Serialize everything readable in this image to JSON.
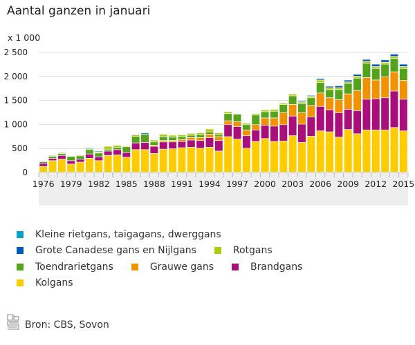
{
  "title": "Aantal ganzen in januari",
  "unit_label": "x 1 000",
  "source": "Bron: CBS, Sovon",
  "logo_icon": "cbs-logo-icon",
  "chart_data": {
    "type": "bar",
    "stacked": true,
    "title": "Aantal ganzen in januari",
    "ylabel": "x 1 000",
    "xlabel": "",
    "ylim": [
      0,
      2500
    ],
    "yticks": [
      0,
      500,
      1000,
      1500,
      2000,
      2500
    ],
    "ytick_labels": [
      "0",
      "500",
      "1 000",
      "1 500",
      "2 000",
      "2 500"
    ],
    "xtick_labels": [
      "1976",
      "1979",
      "1982",
      "1985",
      "1988",
      "1991",
      "1994",
      "1997",
      "2000",
      "2003",
      "2006",
      "2009",
      "2012",
      "2015"
    ],
    "grid": true,
    "legend_position": "bottom",
    "categories": [
      "1976",
      "1977",
      "1978",
      "1979",
      "1980",
      "1981",
      "1982",
      "1983",
      "1984",
      "1985",
      "1986",
      "1987",
      "1988",
      "1989",
      "1990",
      "1991",
      "1992",
      "1993",
      "1994",
      "1995",
      "1996",
      "1997",
      "1998",
      "1999",
      "2000",
      "2001",
      "2002",
      "2003",
      "2004",
      "2005",
      "2006",
      "2007",
      "2008",
      "2009",
      "2010",
      "2011",
      "2012",
      "2013",
      "2014",
      "2015"
    ],
    "series": [
      {
        "name": "Kolgans",
        "color": "#ffcc00",
        "values": [
          120,
          240,
          270,
          170,
          210,
          290,
          240,
          350,
          360,
          310,
          470,
          470,
          390,
          480,
          490,
          510,
          520,
          500,
          520,
          440,
          740,
          690,
          500,
          640,
          700,
          640,
          650,
          760,
          620,
          750,
          860,
          840,
          730,
          890,
          800,
          880,
          880,
          880,
          930,
          860
        ]
      },
      {
        "name": "Brandgans",
        "color": "#aa0e7a",
        "values": [
          70,
          50,
          80,
          70,
          60,
          90,
          80,
          90,
          110,
          100,
          140,
          150,
          150,
          150,
          140,
          130,
          150,
          160,
          200,
          220,
          250,
          260,
          260,
          240,
          280,
          320,
          340,
          410,
          380,
          400,
          510,
          460,
          510,
          420,
          480,
          640,
          650,
          670,
          760,
          660
        ]
      },
      {
        "name": "Grauwe gans",
        "color": "#f39200",
        "values": [
          0,
          0,
          0,
          0,
          0,
          0,
          0,
          0,
          0,
          0,
          0,
          0,
          20,
          30,
          30,
          40,
          50,
          60,
          70,
          80,
          80,
          100,
          120,
          110,
          150,
          170,
          250,
          240,
          240,
          240,
          280,
          250,
          270,
          320,
          420,
          450,
          390,
          440,
          400,
          390
        ]
      },
      {
        "name": "Toendrarietgans",
        "color": "#53a31d",
        "values": [
          30,
          40,
          40,
          90,
          70,
          90,
          80,
          40,
          50,
          120,
          140,
          170,
          70,
          80,
          70,
          60,
          50,
          60,
          50,
          40,
          150,
          160,
          110,
          200,
          130,
          140,
          170,
          180,
          190,
          160,
          220,
          170,
          210,
          220,
          260,
          300,
          240,
          260,
          280,
          250
        ]
      },
      {
        "name": "Rotgans",
        "color": "#afca0b",
        "values": [
          10,
          20,
          20,
          10,
          20,
          20,
          20,
          60,
          40,
          20,
          30,
          0,
          40,
          50,
          40,
          40,
          40,
          40,
          60,
          40,
          40,
          10,
          30,
          30,
          40,
          40,
          30,
          40,
          30,
          30,
          50,
          40,
          40,
          30,
          40,
          40,
          40,
          40,
          40,
          40
        ]
      },
      {
        "name": "Grote Canadese gans en Nijlgans",
        "color": "#0058b8",
        "values": [
          0,
          0,
          0,
          0,
          0,
          0,
          0,
          0,
          0,
          0,
          0,
          0,
          0,
          0,
          0,
          0,
          0,
          0,
          0,
          0,
          0,
          0,
          0,
          0,
          0,
          0,
          10,
          10,
          20,
          20,
          30,
          30,
          40,
          40,
          40,
          40,
          50,
          50,
          50,
          50
        ]
      },
      {
        "name": "Kleine rietgans, taigagans, dwerggans",
        "color": "#00a1cd",
        "values": [
          0,
          0,
          0,
          0,
          0,
          20,
          20,
          0,
          0,
          0,
          0,
          30,
          0,
          0,
          0,
          0,
          0,
          0,
          0,
          0,
          0,
          0,
          0,
          0,
          0,
          0,
          0,
          0,
          0,
          0,
          0,
          0,
          0,
          0,
          0,
          0,
          0,
          0,
          0,
          0
        ]
      }
    ]
  },
  "legend": {
    "rows": [
      [
        {
          "label": "Kleine rietgans, taigagans, dwerggans",
          "color": "#00a1cd"
        }
      ],
      [
        {
          "label": "Grote Canadese gans en Nijlgans",
          "color": "#0058b8"
        },
        {
          "label": "Rotgans",
          "color": "#afca0b"
        }
      ],
      [
        {
          "label": "Toendrarietgans",
          "color": "#53a31d"
        },
        {
          "label": "Grauwe gans",
          "color": "#f39200"
        },
        {
          "label": "Brandgans",
          "color": "#aa0e7a"
        }
      ],
      [
        {
          "label": "Kolgans",
          "color": "#ffcc00"
        }
      ]
    ]
  }
}
